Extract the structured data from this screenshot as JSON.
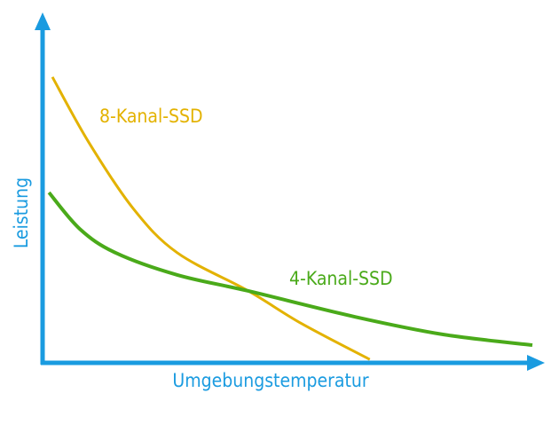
{
  "chart_data": {
    "type": "line",
    "title": "",
    "xlabel": "Umgebungstemperatur",
    "ylabel": "Leistung",
    "xlim": [
      0,
      100
    ],
    "ylim": [
      0,
      100
    ],
    "grid": false,
    "ticks": false,
    "series": [
      {
        "name": "8-Kanal-SSD",
        "color": "#e3b200",
        "x": [
          2,
          9.4,
          18.5,
          27.5,
          42,
          52.9,
          66.8
        ],
        "y": [
          83.9,
          64.8,
          45.3,
          32.3,
          21.1,
          11.5,
          1.0
        ]
      },
      {
        "name": "4-Kanal-SSD",
        "color": "#4aaa1a",
        "x": [
          1.3,
          7.6,
          14.9,
          27.5,
          42,
          63.8,
          81.9,
          100
        ],
        "y": [
          50,
          39.3,
          32.3,
          25.8,
          21.1,
          13.5,
          8.3,
          5.2
        ]
      }
    ],
    "axis_color": "#1a9be0"
  }
}
